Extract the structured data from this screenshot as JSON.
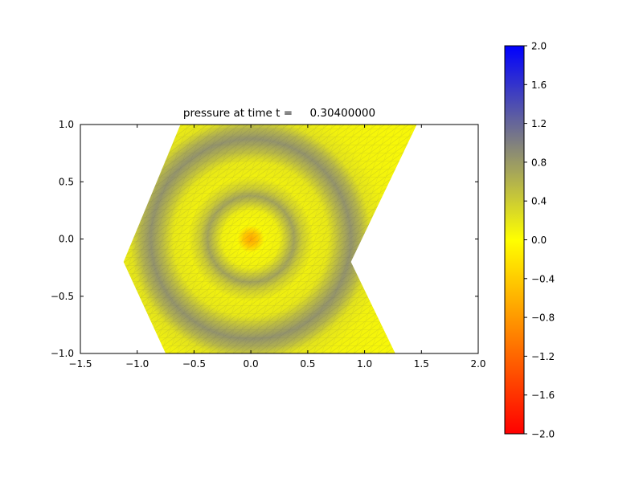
{
  "chart_data": {
    "type": "heatmap",
    "title": "pressure at time t =     0.30400000",
    "xlabel": "",
    "ylabel": "",
    "xlim": [
      -1.5,
      2.0
    ],
    "ylim": [
      -1.0,
      1.0
    ],
    "x_ticks": [
      {
        "value": -1.5,
        "label": "−1.5"
      },
      {
        "value": -1.0,
        "label": "−1.0"
      },
      {
        "value": -0.5,
        "label": "−0.5"
      },
      {
        "value": 0.0,
        "label": "0.0"
      },
      {
        "value": 0.5,
        "label": "0.5"
      },
      {
        "value": 1.0,
        "label": "1.0"
      },
      {
        "value": 1.5,
        "label": "1.5"
      },
      {
        "value": 2.0,
        "label": "2.0"
      }
    ],
    "y_ticks": [
      {
        "value": 1.0,
        "label": "1.0"
      },
      {
        "value": 0.5,
        "label": "0.5"
      },
      {
        "value": 0.0,
        "label": "0.0"
      },
      {
        "value": -0.5,
        "label": "−0.5"
      },
      {
        "value": -1.0,
        "label": "−1.0"
      }
    ],
    "colorbar": {
      "min": -2.0,
      "max": 2.0,
      "ticks": [
        {
          "value": 2.0,
          "label": "2.0"
        },
        {
          "value": 1.6,
          "label": "1.6"
        },
        {
          "value": 1.2,
          "label": "1.2"
        },
        {
          "value": 0.8,
          "label": "0.8"
        },
        {
          "value": 0.4,
          "label": "0.4"
        },
        {
          "value": 0.0,
          "label": "0.0"
        },
        {
          "value": -0.4,
          "label": "−0.4"
        },
        {
          "value": -0.8,
          "label": "−0.8"
        },
        {
          "value": -1.2,
          "label": "−1.2"
        },
        {
          "value": -1.6,
          "label": "−1.6"
        },
        {
          "value": -2.0,
          "label": "−2.0"
        }
      ],
      "colormap": [
        {
          "value": 2.0,
          "color": "#0000ff"
        },
        {
          "value": 0.0,
          "color": "#ffff00"
        },
        {
          "value": -2.0,
          "color": "#ff0000"
        }
      ]
    },
    "domain_polygon": [
      [
        -0.62,
        1.0
      ],
      [
        1.46,
        1.0
      ],
      [
        0.88,
        -0.2
      ],
      [
        1.27,
        -1.0
      ],
      [
        -0.75,
        -1.0
      ],
      [
        -1.12,
        -0.2
      ]
    ],
    "wave_center": [
      0.0,
      0.0
    ],
    "profile_rmax": 1.5,
    "radial_profile": [
      {
        "r": 0.0,
        "pressure": -0.7
      },
      {
        "r": 0.06,
        "pressure": -0.45
      },
      {
        "r": 0.12,
        "pressure": 0.05
      },
      {
        "r": 0.25,
        "pressure": 0.12
      },
      {
        "r": 0.32,
        "pressure": 0.45
      },
      {
        "r": 0.38,
        "pressure": 0.72
      },
      {
        "r": 0.45,
        "pressure": 0.4
      },
      {
        "r": 0.55,
        "pressure": 0.12
      },
      {
        "r": 0.68,
        "pressure": 0.18
      },
      {
        "r": 0.78,
        "pressure": 0.55
      },
      {
        "r": 0.88,
        "pressure": 0.85
      },
      {
        "r": 0.97,
        "pressure": 0.6
      },
      {
        "r": 1.06,
        "pressure": 0.22
      },
      {
        "r": 1.2,
        "pressure": 0.1
      },
      {
        "r": 1.5,
        "pressure": 0.06
      }
    ]
  }
}
